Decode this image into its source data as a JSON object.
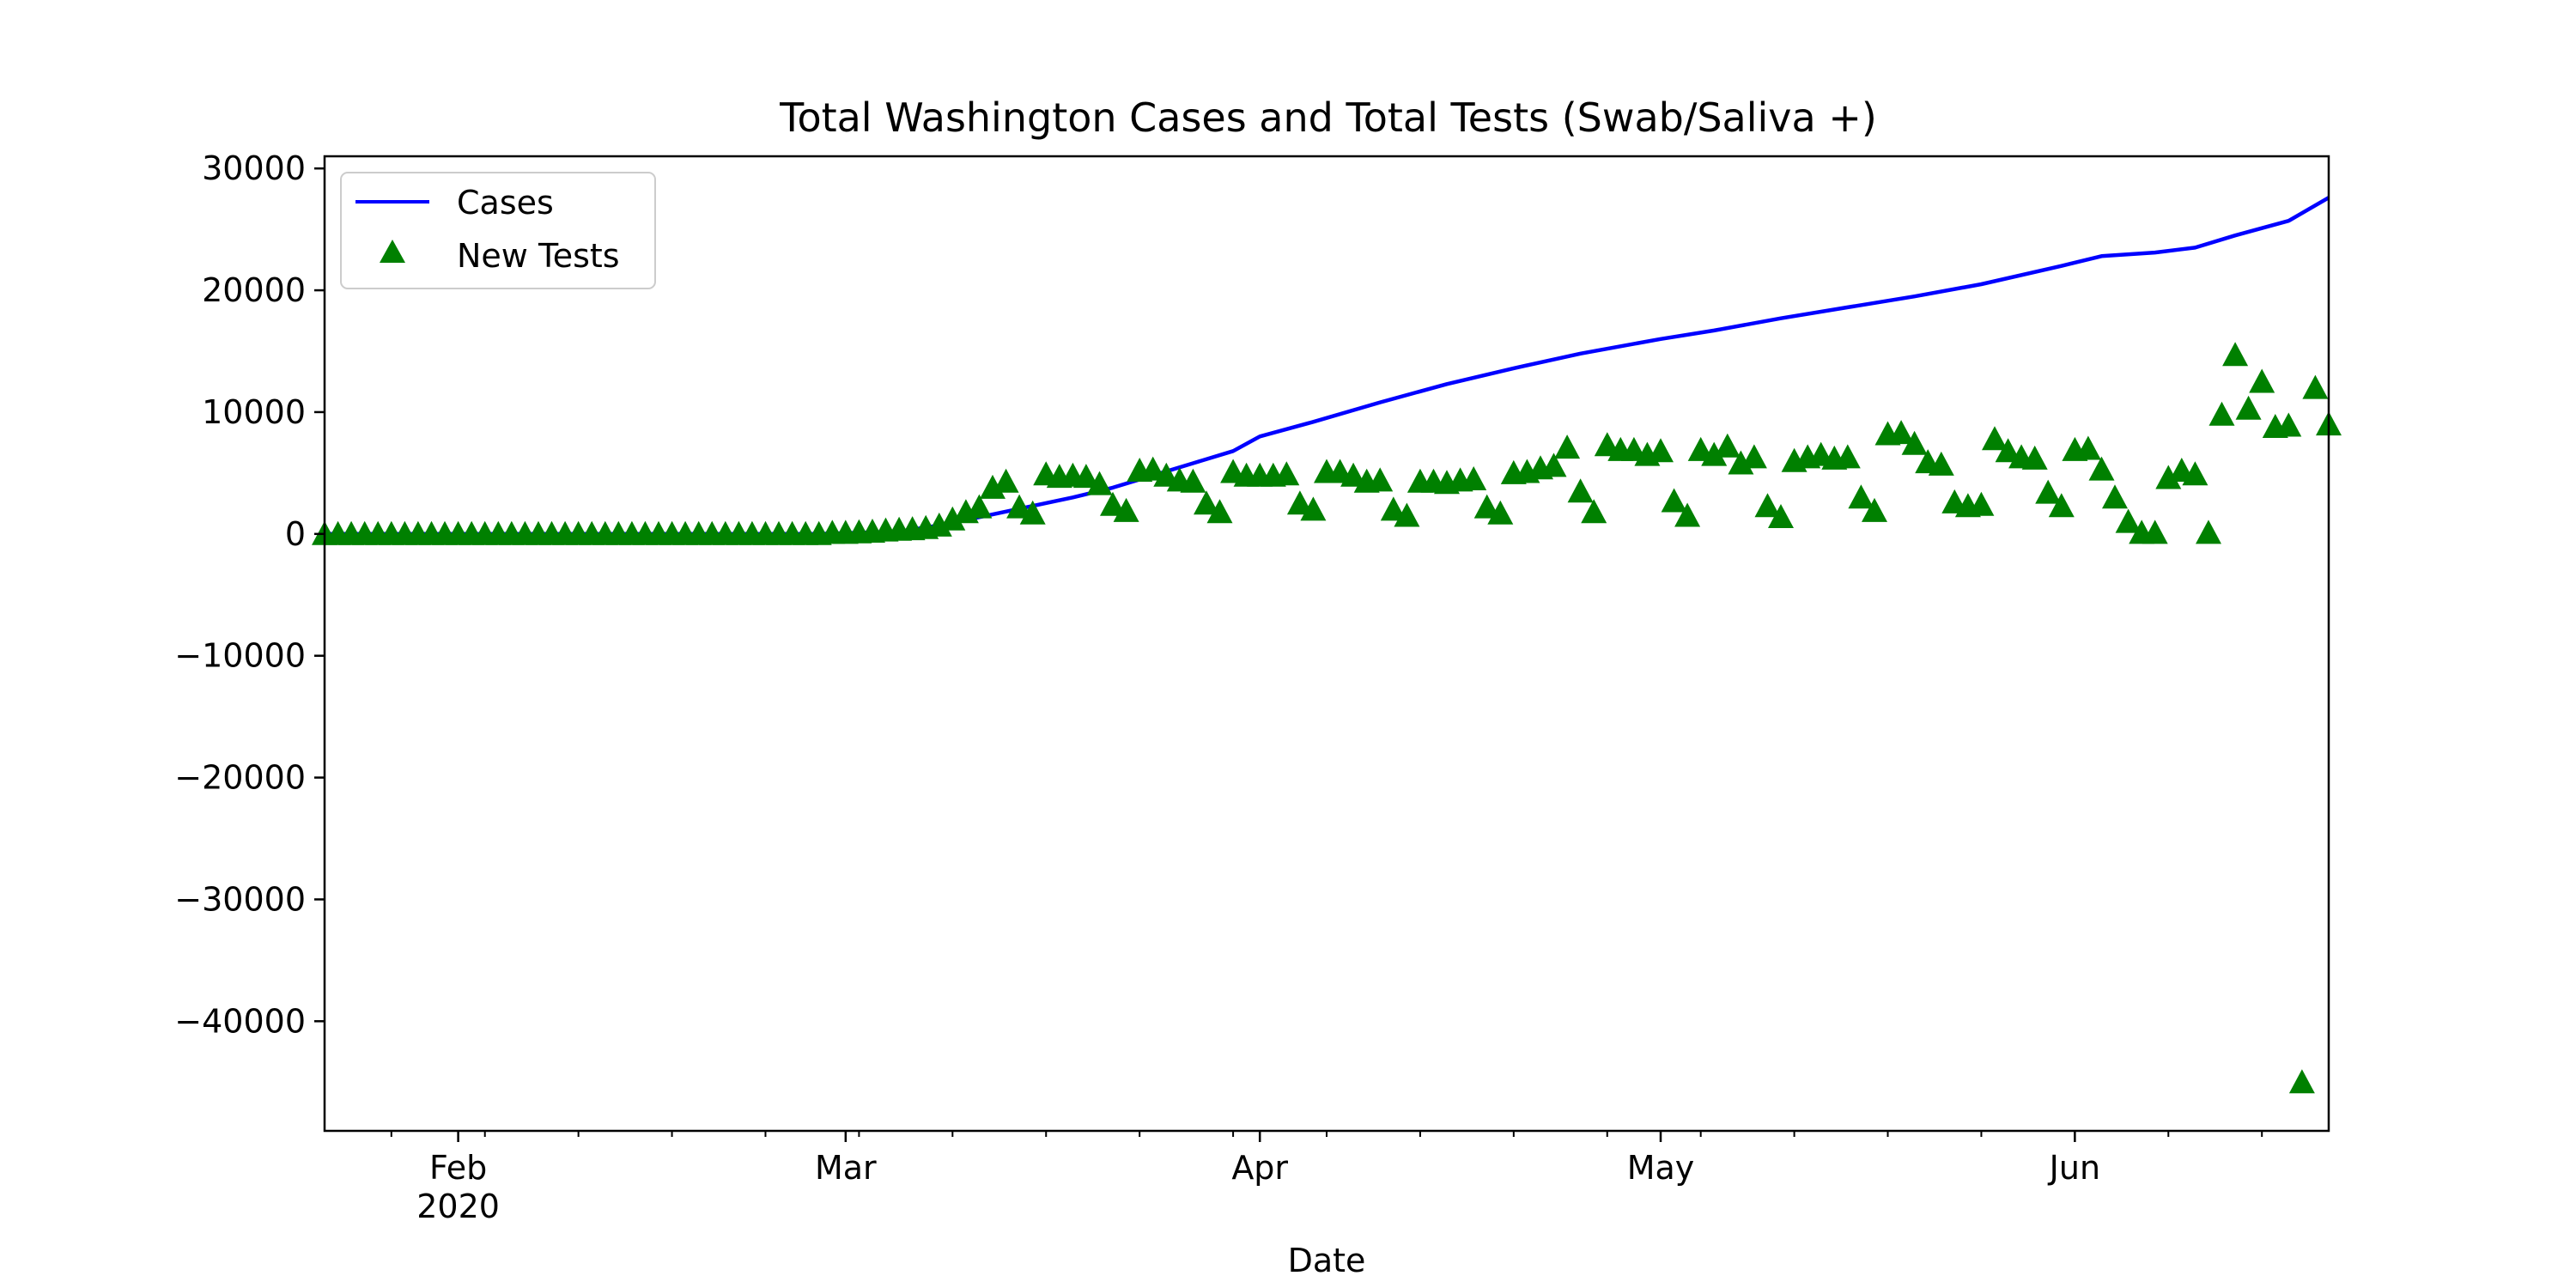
{
  "chart_data": {
    "type": "line",
    "title": "Total Washington Cases and Total Tests (Swab/Saliva +)",
    "xlabel": "Date",
    "ylabel": "",
    "x_start": "2020-01-22",
    "x_end": "2020-06-20",
    "ylim": [
      -49000,
      31000
    ],
    "yticks": [
      30000,
      20000,
      10000,
      0,
      -10000,
      -20000,
      -30000,
      -40000
    ],
    "ytick_labels": [
      "30000",
      "20000",
      "10000",
      "0",
      "−10000",
      "−20000",
      "−30000",
      "−40000"
    ],
    "xticks": [
      {
        "date": "2020-02-01",
        "label": "Feb",
        "sublabel": "2020"
      },
      {
        "date": "2020-03-01",
        "label": "Mar",
        "sublabel": ""
      },
      {
        "date": "2020-04-01",
        "label": "Apr",
        "sublabel": ""
      },
      {
        "date": "2020-05-01",
        "label": "May",
        "sublabel": ""
      },
      {
        "date": "2020-06-01",
        "label": "Jun",
        "sublabel": ""
      }
    ],
    "grid": false,
    "legend_position": "top-left",
    "series": [
      {
        "name": "Cases",
        "kind": "line",
        "color": "#0000ff",
        "points": [
          [
            "2020-01-22",
            0
          ],
          [
            "2020-02-01",
            0
          ],
          [
            "2020-02-15",
            0
          ],
          [
            "2020-02-28",
            0
          ],
          [
            "2020-03-05",
            200
          ],
          [
            "2020-03-08",
            700
          ],
          [
            "2020-03-12",
            1600
          ],
          [
            "2020-03-15",
            2300
          ],
          [
            "2020-03-18",
            3000
          ],
          [
            "2020-03-21",
            3800
          ],
          [
            "2020-03-24",
            4800
          ],
          [
            "2020-03-27",
            5800
          ],
          [
            "2020-03-30",
            6800
          ],
          [
            "2020-04-01",
            8000
          ],
          [
            "2020-04-05",
            9200
          ],
          [
            "2020-04-10",
            10800
          ],
          [
            "2020-04-15",
            12300
          ],
          [
            "2020-04-20",
            13600
          ],
          [
            "2020-04-25",
            14800
          ],
          [
            "2020-05-01",
            16000
          ],
          [
            "2020-05-05",
            16700
          ],
          [
            "2020-05-10",
            17700
          ],
          [
            "2020-05-15",
            18600
          ],
          [
            "2020-05-20",
            19500
          ],
          [
            "2020-05-25",
            20500
          ],
          [
            "2020-05-31",
            22000
          ],
          [
            "2020-06-03",
            22800
          ],
          [
            "2020-06-07",
            23100
          ],
          [
            "2020-06-10",
            23500
          ],
          [
            "2020-06-13",
            24500
          ],
          [
            "2020-06-17",
            25700
          ],
          [
            "2020-06-20",
            27600
          ]
        ]
      },
      {
        "name": "New Tests",
        "kind": "scatter",
        "marker": "triangle",
        "color": "#008000",
        "points": [
          [
            "2020-01-22",
            0
          ],
          [
            "2020-01-23",
            0
          ],
          [
            "2020-01-24",
            0
          ],
          [
            "2020-01-25",
            0
          ],
          [
            "2020-01-26",
            0
          ],
          [
            "2020-01-27",
            0
          ],
          [
            "2020-01-28",
            0
          ],
          [
            "2020-01-29",
            0
          ],
          [
            "2020-01-30",
            0
          ],
          [
            "2020-01-31",
            0
          ],
          [
            "2020-02-01",
            0
          ],
          [
            "2020-02-02",
            0
          ],
          [
            "2020-02-03",
            0
          ],
          [
            "2020-02-04",
            0
          ],
          [
            "2020-02-05",
            0
          ],
          [
            "2020-02-06",
            0
          ],
          [
            "2020-02-07",
            0
          ],
          [
            "2020-02-08",
            0
          ],
          [
            "2020-02-09",
            0
          ],
          [
            "2020-02-10",
            0
          ],
          [
            "2020-02-11",
            0
          ],
          [
            "2020-02-12",
            0
          ],
          [
            "2020-02-13",
            0
          ],
          [
            "2020-02-14",
            0
          ],
          [
            "2020-02-15",
            0
          ],
          [
            "2020-02-16",
            0
          ],
          [
            "2020-02-17",
            0
          ],
          [
            "2020-02-18",
            0
          ],
          [
            "2020-02-19",
            0
          ],
          [
            "2020-02-20",
            0
          ],
          [
            "2020-02-21",
            0
          ],
          [
            "2020-02-22",
            0
          ],
          [
            "2020-02-23",
            0
          ],
          [
            "2020-02-24",
            0
          ],
          [
            "2020-02-25",
            0
          ],
          [
            "2020-02-26",
            0
          ],
          [
            "2020-02-27",
            0
          ],
          [
            "2020-02-28",
            0
          ],
          [
            "2020-02-29",
            100
          ],
          [
            "2020-03-01",
            100
          ],
          [
            "2020-03-02",
            150
          ],
          [
            "2020-03-03",
            200
          ],
          [
            "2020-03-04",
            300
          ],
          [
            "2020-03-05",
            350
          ],
          [
            "2020-03-06",
            400
          ],
          [
            "2020-03-07",
            500
          ],
          [
            "2020-03-08",
            700
          ],
          [
            "2020-03-09",
            1200
          ],
          [
            "2020-03-10",
            1800
          ],
          [
            "2020-03-11",
            2200
          ],
          [
            "2020-03-12",
            3800
          ],
          [
            "2020-03-13",
            4300
          ],
          [
            "2020-03-14",
            2200
          ],
          [
            "2020-03-15",
            1700
          ],
          [
            "2020-03-16",
            4900
          ],
          [
            "2020-03-17",
            4700
          ],
          [
            "2020-03-18",
            4800
          ],
          [
            "2020-03-19",
            4700
          ],
          [
            "2020-03-20",
            4100
          ],
          [
            "2020-03-21",
            2400
          ],
          [
            "2020-03-22",
            1900
          ],
          [
            "2020-03-23",
            5200
          ],
          [
            "2020-03-24",
            5300
          ],
          [
            "2020-03-25",
            4800
          ],
          [
            "2020-03-26",
            4400
          ],
          [
            "2020-03-27",
            4300
          ],
          [
            "2020-03-28",
            2500
          ],
          [
            "2020-03-29",
            1800
          ],
          [
            "2020-03-30",
            5100
          ],
          [
            "2020-03-31",
            4800
          ],
          [
            "2020-04-01",
            4800
          ],
          [
            "2020-04-02",
            4800
          ],
          [
            "2020-04-03",
            4900
          ],
          [
            "2020-04-04",
            2500
          ],
          [
            "2020-04-05",
            2000
          ],
          [
            "2020-04-06",
            5100
          ],
          [
            "2020-04-07",
            5100
          ],
          [
            "2020-04-08",
            4800
          ],
          [
            "2020-04-09",
            4300
          ],
          [
            "2020-04-10",
            4400
          ],
          [
            "2020-04-11",
            2000
          ],
          [
            "2020-04-12",
            1500
          ],
          [
            "2020-04-13",
            4300
          ],
          [
            "2020-04-14",
            4300
          ],
          [
            "2020-04-15",
            4200
          ],
          [
            "2020-04-16",
            4400
          ],
          [
            "2020-04-17",
            4500
          ],
          [
            "2020-04-18",
            2200
          ],
          [
            "2020-04-19",
            1700
          ],
          [
            "2020-04-20",
            5000
          ],
          [
            "2020-04-21",
            5100
          ],
          [
            "2020-04-22",
            5400
          ],
          [
            "2020-04-23",
            5600
          ],
          [
            "2020-04-24",
            7100
          ],
          [
            "2020-04-25",
            3500
          ],
          [
            "2020-04-26",
            1800
          ],
          [
            "2020-04-27",
            7300
          ],
          [
            "2020-04-28",
            6900
          ],
          [
            "2020-04-29",
            6900
          ],
          [
            "2020-04-30",
            6500
          ],
          [
            "2020-05-01",
            6800
          ],
          [
            "2020-05-02",
            2700
          ],
          [
            "2020-05-03",
            1500
          ],
          [
            "2020-05-04",
            6900
          ],
          [
            "2020-05-05",
            6500
          ],
          [
            "2020-05-06",
            7200
          ],
          [
            "2020-05-07",
            5800
          ],
          [
            "2020-05-08",
            6300
          ],
          [
            "2020-05-09",
            2300
          ],
          [
            "2020-05-10",
            1400
          ],
          [
            "2020-05-11",
            6000
          ],
          [
            "2020-05-12",
            6300
          ],
          [
            "2020-05-13",
            6500
          ],
          [
            "2020-05-14",
            6200
          ],
          [
            "2020-05-15",
            6300
          ],
          [
            "2020-05-16",
            3000
          ],
          [
            "2020-05-17",
            1900
          ],
          [
            "2020-05-18",
            8200
          ],
          [
            "2020-05-19",
            8300
          ],
          [
            "2020-05-20",
            7400
          ],
          [
            "2020-05-21",
            5900
          ],
          [
            "2020-05-22",
            5700
          ],
          [
            "2020-05-23",
            2600
          ],
          [
            "2020-05-24",
            2300
          ],
          [
            "2020-05-25",
            2400
          ],
          [
            "2020-05-26",
            7800
          ],
          [
            "2020-05-27",
            6800
          ],
          [
            "2020-05-28",
            6300
          ],
          [
            "2020-05-29",
            6200
          ],
          [
            "2020-05-30",
            3400
          ],
          [
            "2020-05-31",
            2300
          ],
          [
            "2020-06-01",
            6900
          ],
          [
            "2020-06-02",
            7000
          ],
          [
            "2020-06-03",
            5300
          ],
          [
            "2020-06-04",
            3000
          ],
          [
            "2020-06-05",
            1000
          ],
          [
            "2020-06-06",
            100
          ],
          [
            "2020-06-07",
            100
          ],
          [
            "2020-06-08",
            4600
          ],
          [
            "2020-06-09",
            5200
          ],
          [
            "2020-06-10",
            4900
          ],
          [
            "2020-06-11",
            100
          ],
          [
            "2020-06-12",
            9800
          ],
          [
            "2020-06-13",
            14700
          ],
          [
            "2020-06-14",
            10300
          ],
          [
            "2020-06-15",
            12500
          ],
          [
            "2020-06-16",
            8800
          ],
          [
            "2020-06-17",
            8900
          ],
          [
            "2020-06-18",
            -45000
          ],
          [
            "2020-06-19",
            12000
          ],
          [
            "2020-06-20",
            9000
          ]
        ]
      }
    ]
  }
}
